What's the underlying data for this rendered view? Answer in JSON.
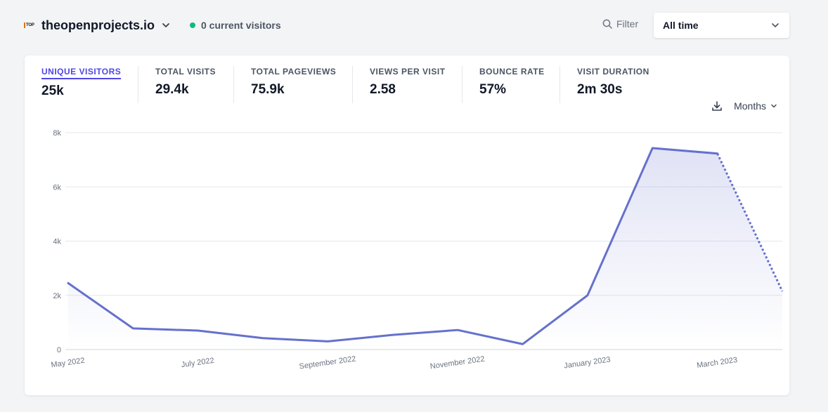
{
  "site": {
    "name": "theopenprojects.io",
    "favicon_text": "TOP"
  },
  "realtime": {
    "text": "0 current visitors"
  },
  "filter": {
    "label": "Filter"
  },
  "period": {
    "label": "All time"
  },
  "stats": [
    {
      "label": "UNIQUE VISITORS",
      "value": "25k"
    },
    {
      "label": "TOTAL VISITS",
      "value": "29.4k"
    },
    {
      "label": "TOTAL PAGEVIEWS",
      "value": "75.9k"
    },
    {
      "label": "VIEWS PER VISIT",
      "value": "2.58"
    },
    {
      "label": "BOUNCE RATE",
      "value": "57%"
    },
    {
      "label": "VISIT DURATION",
      "value": "2m 30s"
    }
  ],
  "interval": {
    "label": "Months"
  },
  "colors": {
    "accent": "#4f46e5",
    "line": "#6571cc",
    "online": "#10b981"
  },
  "icons": [
    "chevron-down-icon",
    "search-icon",
    "download-icon"
  ],
  "chart_data": {
    "type": "line",
    "x": [
      "May 2022",
      "June 2022",
      "July 2022",
      "August 2022",
      "September 2022",
      "October 2022",
      "November 2022",
      "December 2022",
      "January 2023",
      "February 2023",
      "March 2023",
      "April 2023"
    ],
    "series": [
      {
        "values": [
          2450,
          780,
          700,
          420,
          300,
          540,
          720,
          200,
          2000,
          7430,
          7230,
          2150
        ]
      }
    ],
    "incomplete_last_period": true,
    "x_tick_labels": [
      "May 2022",
      "July 2022",
      "September 2022",
      "November 2022",
      "January 2023",
      "March 2023"
    ],
    "y_tick_labels": [
      "0",
      "2k",
      "4k",
      "6k",
      "8k"
    ],
    "ylim": [
      0,
      8000
    ],
    "grid": true,
    "fill": "gradient-area"
  }
}
